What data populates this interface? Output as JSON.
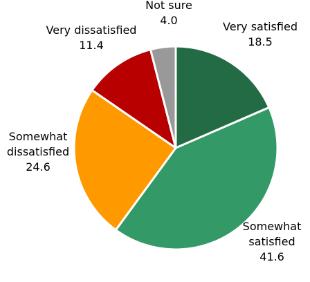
{
  "chart_data": {
    "type": "pie",
    "slices": [
      {
        "label": [
          "Very satisfied"
        ],
        "value": 18.5,
        "value_label": "18.5",
        "color": "#226B44"
      },
      {
        "label": [
          "Somewhat",
          "satisfied"
        ],
        "value": 41.6,
        "value_label": "41.6",
        "color": "#339966"
      },
      {
        "label": [
          "Somewhat",
          "dissatisfied"
        ],
        "value": 24.6,
        "value_label": "24.6",
        "color": "#FF9900"
      },
      {
        "label": [
          "Very dissatisfied"
        ],
        "value": 11.4,
        "value_label": "11.4",
        "color": "#B80000"
      },
      {
        "label": [
          "Not sure"
        ],
        "value": 4.0,
        "value_label": "4.0",
        "color": "#999999"
      }
    ],
    "start_angle": "12 o'clock",
    "direction": "clockwise",
    "legend": "none"
  }
}
